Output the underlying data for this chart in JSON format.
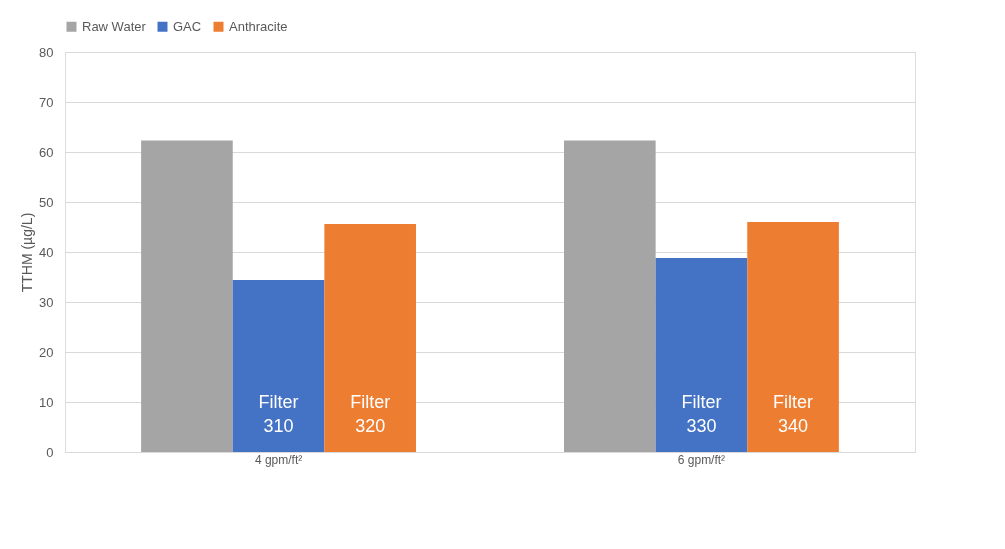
{
  "chart_data": {
    "type": "bar",
    "ylabel": "TTHM (µg/L)",
    "categories": [
      "4 gpm/ft²",
      "6 gpm/ft²"
    ],
    "series": [
      {
        "name": "Raw Water",
        "color": "#a5a5a5",
        "values": [
          62.3,
          62.3
        ]
      },
      {
        "name": "GAC",
        "color": "#4472c4",
        "values": [
          34.4,
          38.8
        ],
        "value_labels": [
          "Filter 310",
          "Filter 330"
        ]
      },
      {
        "name": "Anthracite",
        "color": "#ed7d31",
        "values": [
          45.6,
          46.0
        ],
        "value_labels": [
          "Filter 320",
          "Filter 340"
        ]
      }
    ],
    "ylim": [
      0,
      80
    ],
    "yticks": [
      0,
      10,
      20,
      30,
      40,
      50,
      60,
      70,
      80
    ],
    "grid": "y",
    "legend": "top"
  }
}
